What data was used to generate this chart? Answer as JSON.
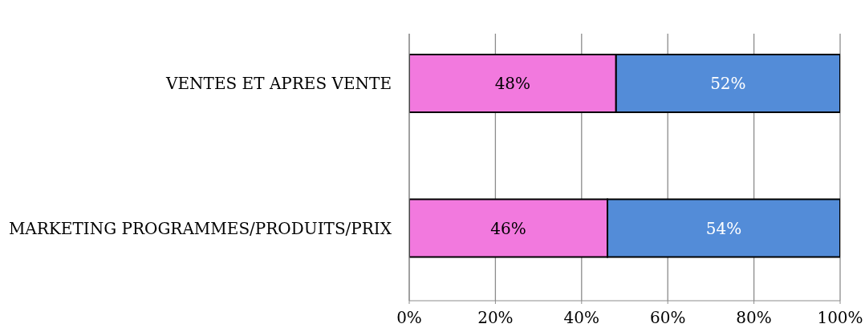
{
  "chart_data": {
    "type": "bar",
    "orientation": "horizontal",
    "stacked": true,
    "categories": [
      "VENTES ET APRES VENTE",
      "MARKETING PROGRAMMES/PRODUITS/PRIX"
    ],
    "series": [
      {
        "color": "#f279de",
        "values": [
          48,
          46
        ],
        "value_labels": [
          "48%",
          "46%"
        ]
      },
      {
        "color": "#538cd8",
        "values": [
          52,
          54
        ],
        "value_labels": [
          "52%",
          "54%"
        ]
      }
    ],
    "xlim": [
      0,
      100
    ],
    "xticks": [
      {
        "value": 0,
        "label": "0%"
      },
      {
        "value": 20,
        "label": "20%"
      },
      {
        "value": 40,
        "label": "40%"
      },
      {
        "value": 60,
        "label": "60%"
      },
      {
        "value": 80,
        "label": "80%"
      },
      {
        "value": 100,
        "label": "100%"
      }
    ],
    "grid": "x",
    "legend": false
  }
}
